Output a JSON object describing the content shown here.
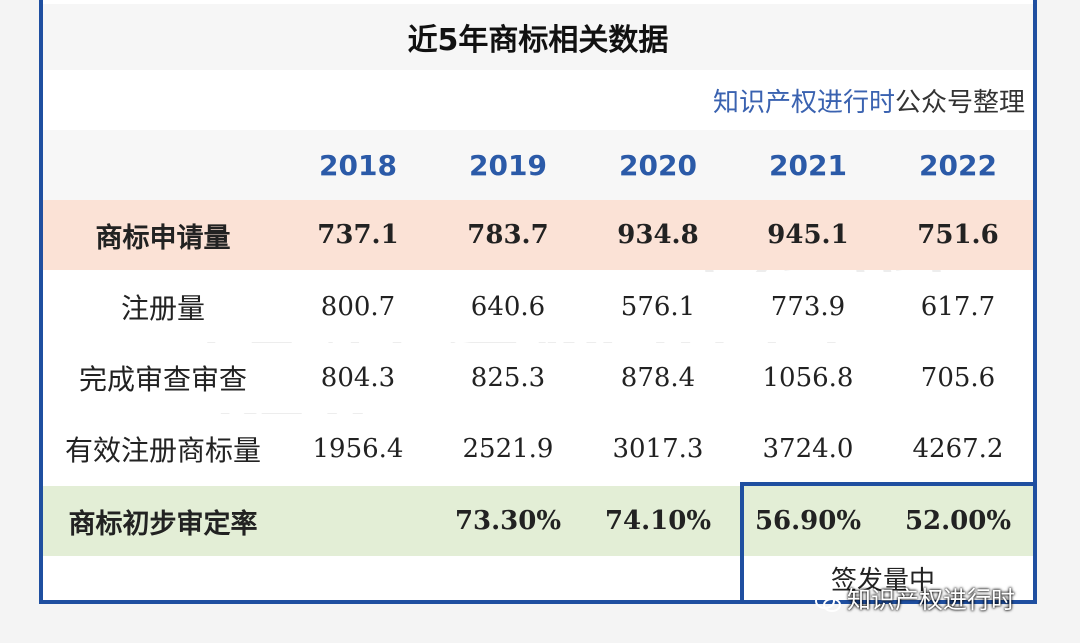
{
  "title": "近5年商标相关数据",
  "source": {
    "brand": "知识产权进行时",
    "suffix": "公众号整理"
  },
  "years": [
    "2018",
    "2019",
    "2020",
    "2021",
    "2022"
  ],
  "rows": [
    {
      "label": "商标申请量",
      "values": [
        "737.1",
        "783.7",
        "934.8",
        "945.1",
        "751.6"
      ]
    },
    {
      "label": "注册量",
      "values": [
        "800.7",
        "640.6",
        "576.1",
        "773.9",
        "617.7"
      ]
    },
    {
      "label": "完成审查审查",
      "values": [
        "804.3",
        "825.3",
        "878.4",
        "1056.8",
        "705.6"
      ]
    },
    {
      "label": "有效注册商标量",
      "values": [
        "1956.4",
        "2521.9",
        "3017.3",
        "3724.0",
        "4267.2"
      ]
    },
    {
      "label": "商标初步审定率",
      "values": [
        "",
        "73.30%",
        "74.10%",
        "56.90%",
        "52.00%"
      ]
    }
  ],
  "footnote": "签发量中",
  "watermark": "知识产权进行时",
  "wechat_label": "知识产权进行时",
  "colors": {
    "border": "#1f4fa0",
    "year": "#2b5aa8",
    "apply_row": "#fbe2d6",
    "rate_row": "#e3eed6"
  }
}
